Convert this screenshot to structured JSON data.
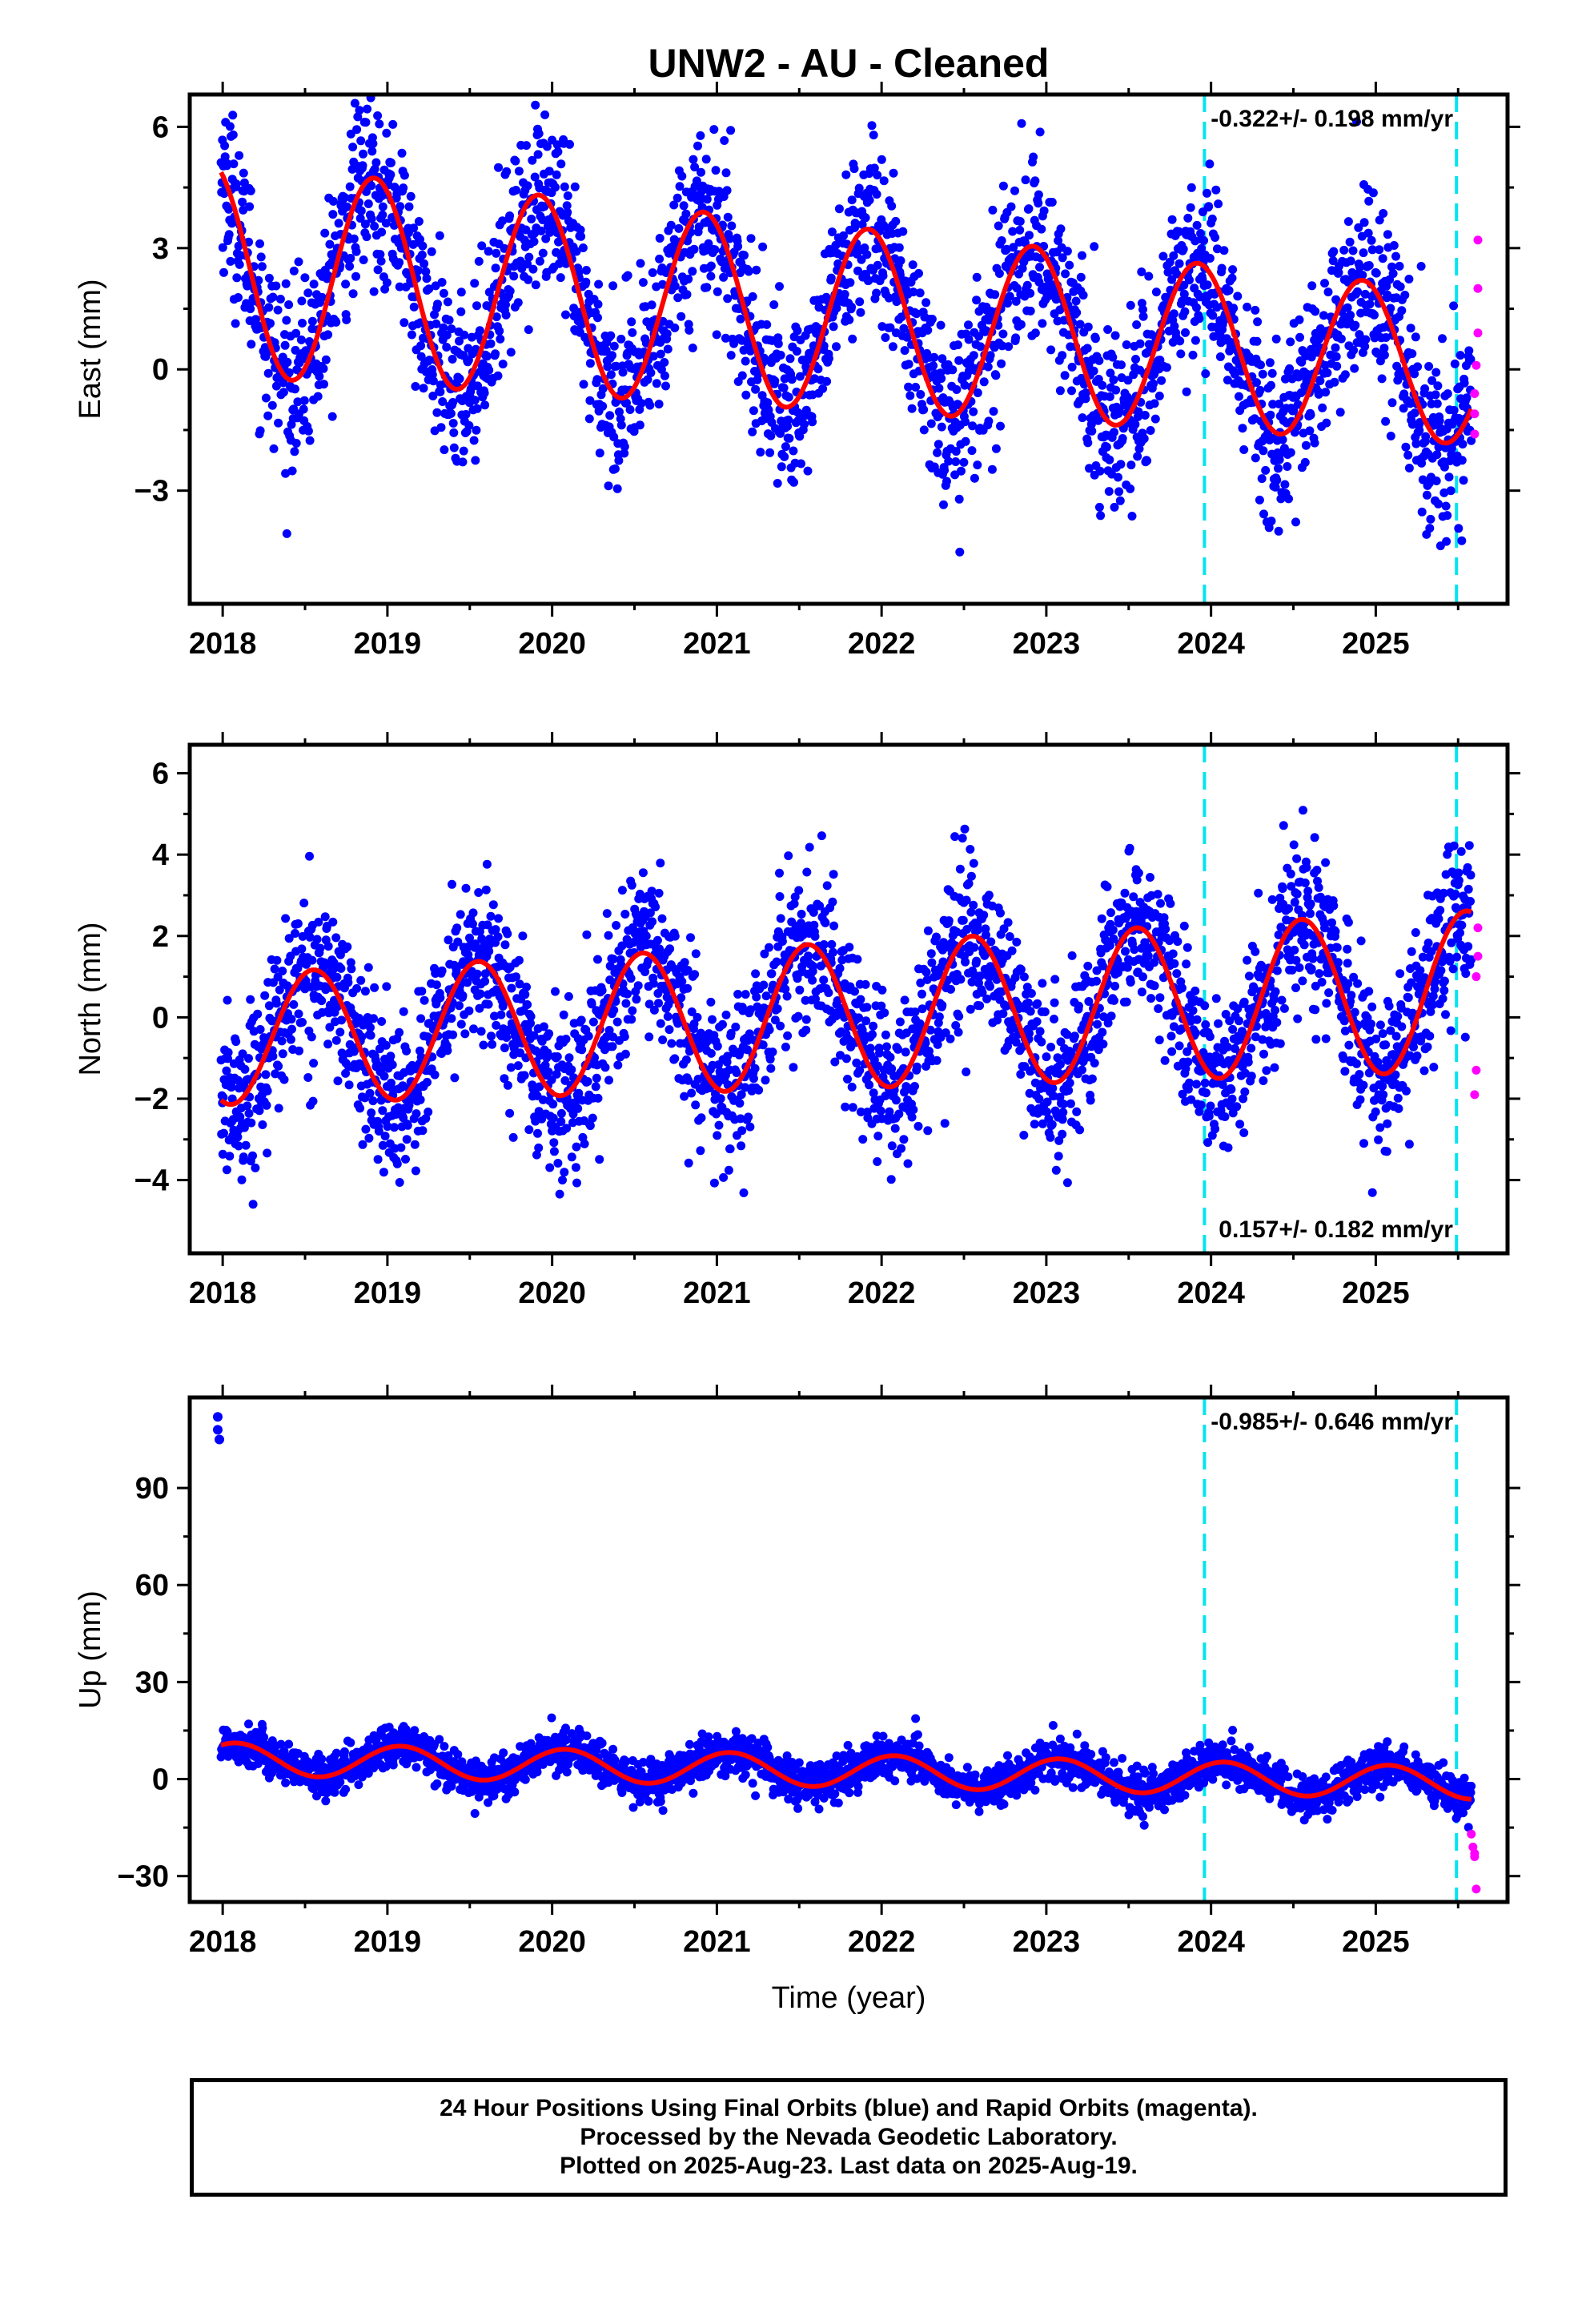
{
  "title": "UNW2  - AU - Cleaned",
  "colors": {
    "final_orbits": "#0000ff",
    "rapid_orbits": "#ff00ff",
    "model": "#ff0000",
    "steps": "#00e5ee"
  },
  "caption": {
    "line1": "24 Hour Positions Using Final Orbits (blue) and Rapid Orbits (magenta).",
    "line2": "Processed by the Nevada Geodetic Laboratory.",
    "line3": "Plotted on 2025-Aug-23. Last data on 2025-Aug-19."
  },
  "chart_data": [
    {
      "type": "scatter",
      "component": "east",
      "ylabel": "East (mm)",
      "xlabel": "",
      "rate": "-0.322+/- 0.198 mm/yr",
      "rate_position": "top-right",
      "xlim": [
        2017.8,
        2025.8
      ],
      "ylim": [
        -5.8,
        6.8
      ],
      "x_ticks": [
        2018,
        2019,
        2020,
        2021,
        2022,
        2023,
        2024,
        2025
      ],
      "y_ticks": [
        -3,
        0,
        3,
        6
      ],
      "step_lines_x": [
        2023.96,
        2025.49
      ],
      "model": {
        "offset": 1.25,
        "trend": -0.322,
        "amplitude": 2.65,
        "peak_phase": 0.92,
        "amp_growth": -0.1
      },
      "final_orbits": {
        "start": 2017.99,
        "end": 2025.58,
        "noise": 1.1
      },
      "rapid_orbits": [
        {
          "x": 2025.62,
          "y": 3.2
        },
        {
          "x": 2025.62,
          "y": 2.0
        },
        {
          "x": 2025.62,
          "y": 0.9
        },
        {
          "x": 2025.61,
          "y": 0.1
        },
        {
          "x": 2025.6,
          "y": -0.6
        },
        {
          "x": 2025.6,
          "y": -1.1
        },
        {
          "x": 2025.6,
          "y": -1.6
        }
      ]
    },
    {
      "type": "scatter",
      "component": "north",
      "ylabel": "North (mm)",
      "xlabel": "",
      "rate": "0.157+/- 0.182 mm/yr",
      "rate_position": "bottom-right",
      "xlim": [
        2017.8,
        2025.8
      ],
      "ylim": [
        -5.8,
        6.7
      ],
      "x_ticks": [
        2018,
        2019,
        2020,
        2021,
        2022,
        2023,
        2024,
        2025
      ],
      "y_ticks": [
        -4,
        -2,
        0,
        2,
        4,
        6
      ],
      "step_lines_x": [
        2023.96,
        2025.49
      ],
      "model": {
        "offset": 0.05,
        "trend": 0.157,
        "amplitude": 1.6,
        "peak_phase": 0.55,
        "amp_growth": 0.05
      },
      "final_orbits": {
        "start": 2017.99,
        "end": 2025.58,
        "noise": 1.0
      },
      "rapid_orbits": [
        {
          "x": 2025.62,
          "y": 2.2
        },
        {
          "x": 2025.62,
          "y": 1.5
        },
        {
          "x": 2025.61,
          "y": 1.0
        },
        {
          "x": 2025.61,
          "y": -1.3
        },
        {
          "x": 2025.6,
          "y": -1.9
        }
      ]
    },
    {
      "type": "scatter",
      "component": "up",
      "ylabel": "Up (mm)",
      "xlabel": "Time (year)",
      "rate": "-0.985+/- 0.646 mm/yr",
      "rate_position": "top-right",
      "xlim": [
        2017.8,
        2025.8
      ],
      "ylim": [
        -38,
        118
      ],
      "x_ticks": [
        2018,
        2019,
        2020,
        2021,
        2022,
        2023,
        2024,
        2025
      ],
      "y_ticks": [
        -30,
        0,
        30,
        60,
        90
      ],
      "step_lines_x": [
        2023.96,
        2025.49
      ],
      "model": {
        "offset": 2.5,
        "trend": -0.985,
        "amplitude": 5.0,
        "peak_phase": 0.08,
        "amp_growth": 0
      },
      "final_orbits": {
        "start": 2017.99,
        "end": 2025.58,
        "noise": 3.2
      },
      "outliers": [
        {
          "x": 2017.97,
          "y": 112
        },
        {
          "x": 2017.97,
          "y": 108
        },
        {
          "x": 2017.98,
          "y": 105
        }
      ],
      "rapid_orbits": [
        {
          "x": 2025.58,
          "y": -17
        },
        {
          "x": 2025.59,
          "y": -21
        },
        {
          "x": 2025.6,
          "y": -23
        },
        {
          "x": 2025.6,
          "y": -24
        },
        {
          "x": 2025.61,
          "y": -34
        }
      ]
    }
  ]
}
